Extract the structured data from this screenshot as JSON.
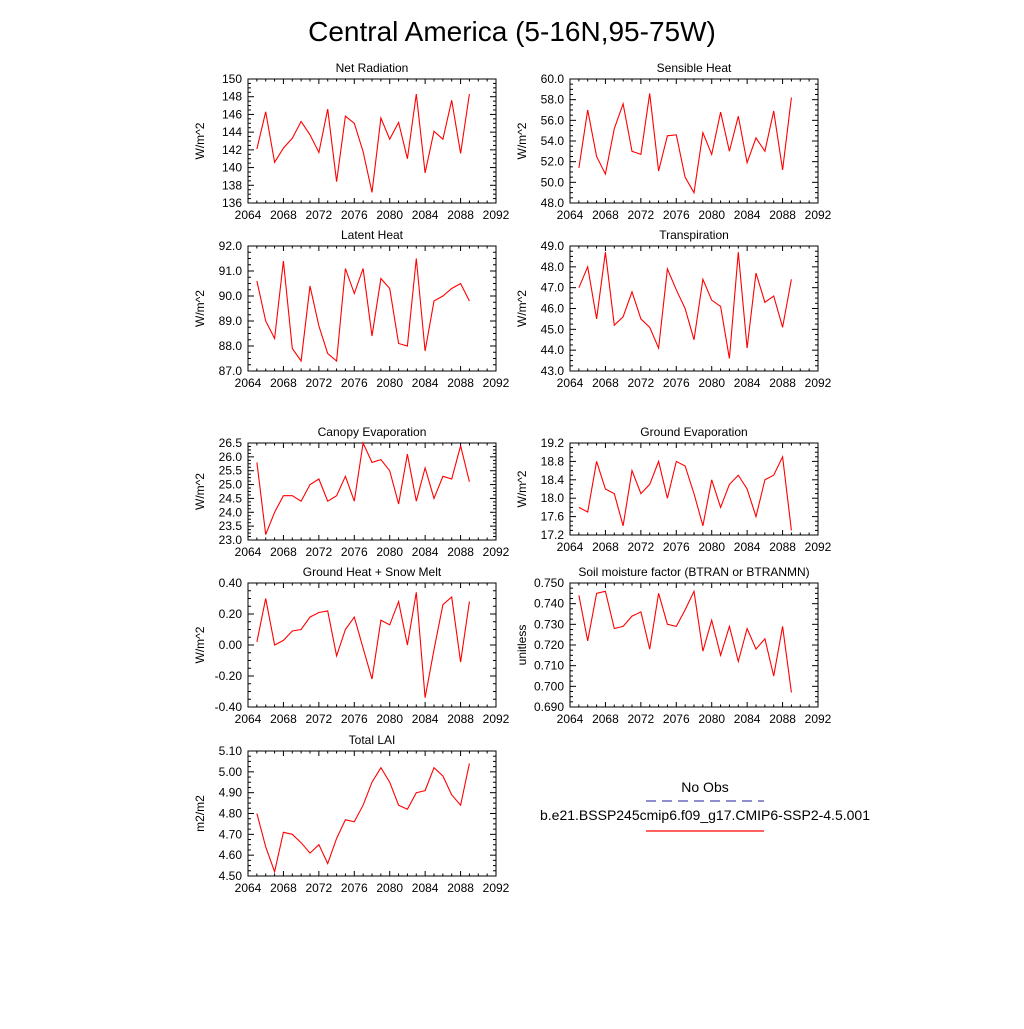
{
  "page": {
    "title": "Central America (5-16N,95-75W)"
  },
  "colors": {
    "series": "#ff0000",
    "obs": "#4b4bb4",
    "axis": "#000000"
  },
  "legend": {
    "obs_label": "No Obs",
    "model_label": "b.e21.BSSP245cmip6.f09_g17.CMIP6-SSP2-4.5.001"
  },
  "chart_data": [
    {
      "type": "line",
      "title": "Net Radiation",
      "ylabel": "W/m^2",
      "xlim": [
        2064,
        2092
      ],
      "ylim": [
        136,
        150
      ],
      "xticks": [
        2064,
        2068,
        2072,
        2076,
        2080,
        2084,
        2088,
        2092
      ],
      "yticks": [
        "136",
        "138",
        "140",
        "142",
        "144",
        "146",
        "148",
        "150"
      ],
      "series": [
        {
          "x": [
            2065,
            2066,
            2067,
            2068,
            2069,
            2070,
            2071,
            2072,
            2073,
            2074,
            2075,
            2076,
            2077,
            2078,
            2079,
            2080,
            2081,
            2082,
            2083,
            2084,
            2085,
            2086,
            2087,
            2088,
            2089
          ],
          "y": [
            142.1,
            146.3,
            140.6,
            142.2,
            143.3,
            145.2,
            143.7,
            141.7,
            146.6,
            138.4,
            145.8,
            145.0,
            141.8,
            137.2,
            145.6,
            143.2,
            145.1,
            141.0,
            148.3,
            139.4,
            144.1,
            143.2,
            147.6,
            141.6,
            148.3
          ]
        }
      ]
    },
    {
      "type": "line",
      "title": "Sensible Heat",
      "ylabel": "W/m^2",
      "xlim": [
        2064,
        2092
      ],
      "ylim": [
        48,
        60
      ],
      "xticks": [
        2064,
        2068,
        2072,
        2076,
        2080,
        2084,
        2088,
        2092
      ],
      "yticks": [
        "48.0",
        "50.0",
        "52.0",
        "54.0",
        "56.0",
        "58.0",
        "60.0"
      ],
      "series": [
        {
          "x": [
            2065,
            2066,
            2067,
            2068,
            2069,
            2070,
            2071,
            2072,
            2073,
            2074,
            2075,
            2076,
            2077,
            2078,
            2079,
            2080,
            2081,
            2082,
            2083,
            2084,
            2085,
            2086,
            2087,
            2088,
            2089
          ],
          "y": [
            51.4,
            57.0,
            52.5,
            50.8,
            55.2,
            57.6,
            53.0,
            52.7,
            58.6,
            51.1,
            54.5,
            54.6,
            50.5,
            49.0,
            54.8,
            52.7,
            56.8,
            53.0,
            56.4,
            51.9,
            54.3,
            53.0,
            56.9,
            51.2,
            58.2
          ]
        }
      ]
    },
    {
      "type": "line",
      "title": "Latent Heat",
      "ylabel": "W/m^2",
      "xlim": [
        2064,
        2092
      ],
      "ylim": [
        87,
        92
      ],
      "xticks": [
        2064,
        2068,
        2072,
        2076,
        2080,
        2084,
        2088,
        2092
      ],
      "yticks": [
        "87.0",
        "88.0",
        "89.0",
        "90.0",
        "91.0",
        "92.0"
      ],
      "series": [
        {
          "x": [
            2065,
            2066,
            2067,
            2068,
            2069,
            2070,
            2071,
            2072,
            2073,
            2074,
            2075,
            2076,
            2077,
            2078,
            2079,
            2080,
            2081,
            2082,
            2083,
            2084,
            2085,
            2086,
            2087,
            2088,
            2089
          ],
          "y": [
            90.6,
            89.0,
            88.3,
            91.4,
            87.9,
            87.4,
            90.4,
            88.8,
            87.7,
            87.4,
            91.1,
            90.1,
            91.1,
            88.4,
            90.7,
            90.3,
            88.1,
            88.0,
            91.5,
            87.8,
            89.8,
            90.0,
            90.3,
            90.5,
            89.8
          ]
        }
      ]
    },
    {
      "type": "line",
      "title": "Transpiration",
      "ylabel": "W/m^2",
      "xlim": [
        2064,
        2092
      ],
      "ylim": [
        43,
        49
      ],
      "xticks": [
        2064,
        2068,
        2072,
        2076,
        2080,
        2084,
        2088,
        2092
      ],
      "yticks": [
        "43.0",
        "44.0",
        "45.0",
        "46.0",
        "47.0",
        "48.0",
        "49.0"
      ],
      "series": [
        {
          "x": [
            2065,
            2066,
            2067,
            2068,
            2069,
            2070,
            2071,
            2072,
            2073,
            2074,
            2075,
            2076,
            2077,
            2078,
            2079,
            2080,
            2081,
            2082,
            2083,
            2084,
            2085,
            2086,
            2087,
            2088,
            2089
          ],
          "y": [
            47.0,
            48.0,
            45.5,
            48.7,
            45.2,
            45.6,
            46.8,
            45.5,
            45.1,
            44.1,
            47.9,
            46.9,
            46.0,
            44.5,
            47.4,
            46.4,
            46.1,
            43.6,
            48.7,
            44.1,
            47.7,
            46.3,
            46.6,
            45.1,
            47.4
          ]
        }
      ]
    },
    {
      "type": "line",
      "title": "Canopy Evaporation",
      "ylabel": "W/m^2",
      "xlim": [
        2064,
        2092
      ],
      "ylim": [
        23,
        26.5
      ],
      "xticks": [
        2064,
        2068,
        2072,
        2076,
        2080,
        2084,
        2088,
        2092
      ],
      "yticks": [
        "23.0",
        "23.5",
        "24.0",
        "24.5",
        "25.0",
        "25.5",
        "26.0",
        "26.5"
      ],
      "series": [
        {
          "x": [
            2065,
            2066,
            2067,
            2068,
            2069,
            2070,
            2071,
            2072,
            2073,
            2074,
            2075,
            2076,
            2077,
            2078,
            2079,
            2080,
            2081,
            2082,
            2083,
            2084,
            2085,
            2086,
            2087,
            2088,
            2089
          ],
          "y": [
            25.8,
            23.2,
            24.0,
            24.6,
            24.6,
            24.4,
            25.0,
            25.2,
            24.4,
            24.6,
            25.3,
            24.4,
            26.5,
            25.8,
            25.9,
            25.5,
            24.3,
            26.1,
            24.4,
            25.6,
            24.5,
            25.3,
            25.2,
            26.4,
            25.1
          ]
        }
      ]
    },
    {
      "type": "line",
      "title": "Ground Evaporation",
      "ylabel": "W/m^2",
      "xlim": [
        2064,
        2092
      ],
      "ylim": [
        17.2,
        19.2
      ],
      "xticks": [
        2064,
        2068,
        2072,
        2076,
        2080,
        2084,
        2088,
        2092
      ],
      "yticks": [
        "17.2",
        "17.6",
        "18.0",
        "18.4",
        "18.8",
        "19.2"
      ],
      "series": [
        {
          "x": [
            2065,
            2066,
            2067,
            2068,
            2069,
            2070,
            2071,
            2072,
            2073,
            2074,
            2075,
            2076,
            2077,
            2078,
            2079,
            2080,
            2081,
            2082,
            2083,
            2084,
            2085,
            2086,
            2087,
            2088,
            2089
          ],
          "y": [
            17.8,
            17.7,
            18.8,
            18.2,
            18.1,
            17.4,
            18.6,
            18.1,
            18.3,
            18.8,
            18.0,
            18.8,
            18.7,
            18.1,
            17.4,
            18.4,
            17.8,
            18.3,
            18.5,
            18.2,
            17.6,
            18.4,
            18.5,
            18.9,
            17.3
          ]
        }
      ]
    },
    {
      "type": "line",
      "title": "Ground Heat + Snow Melt",
      "ylabel": "W/m^2",
      "xlim": [
        2064,
        2092
      ],
      "ylim": [
        -0.4,
        0.4
      ],
      "xticks": [
        2064,
        2068,
        2072,
        2076,
        2080,
        2084,
        2088,
        2092
      ],
      "yticks": [
        "-0.40",
        "-0.20",
        "0.00",
        "0.20",
        "0.40"
      ],
      "series": [
        {
          "x": [
            2065,
            2066,
            2067,
            2068,
            2069,
            2070,
            2071,
            2072,
            2073,
            2074,
            2075,
            2076,
            2077,
            2078,
            2079,
            2080,
            2081,
            2082,
            2083,
            2084,
            2085,
            2086,
            2087,
            2088,
            2089
          ],
          "y": [
            0.02,
            0.3,
            0.0,
            0.03,
            0.09,
            0.1,
            0.18,
            0.21,
            0.22,
            -0.07,
            0.1,
            0.18,
            -0.02,
            -0.22,
            0.16,
            0.13,
            0.28,
            0.0,
            0.34,
            -0.34,
            -0.03,
            0.26,
            0.31,
            -0.11,
            0.28
          ]
        }
      ]
    },
    {
      "type": "line",
      "title": "Soil moisture factor (BTRAN or BTRANMN)",
      "ylabel": "unitless",
      "xlim": [
        2064,
        2092
      ],
      "ylim": [
        0.69,
        0.75
      ],
      "xticks": [
        2064,
        2068,
        2072,
        2076,
        2080,
        2084,
        2088,
        2092
      ],
      "yticks": [
        "0.690",
        "0.700",
        "0.710",
        "0.720",
        "0.730",
        "0.740",
        "0.750"
      ],
      "series": [
        {
          "x": [
            2065,
            2066,
            2067,
            2068,
            2069,
            2070,
            2071,
            2072,
            2073,
            2074,
            2075,
            2076,
            2077,
            2078,
            2079,
            2080,
            2081,
            2082,
            2083,
            2084,
            2085,
            2086,
            2087,
            2088,
            2089
          ],
          "y": [
            0.744,
            0.722,
            0.745,
            0.746,
            0.728,
            0.729,
            0.734,
            0.736,
            0.718,
            0.745,
            0.73,
            0.729,
            0.737,
            0.746,
            0.717,
            0.732,
            0.715,
            0.729,
            0.712,
            0.728,
            0.718,
            0.723,
            0.705,
            0.729,
            0.697
          ]
        }
      ]
    },
    {
      "type": "line",
      "title": "Total LAI",
      "ylabel": "m2/m2",
      "xlim": [
        2064,
        2092
      ],
      "ylim": [
        4.5,
        5.1
      ],
      "xticks": [
        2064,
        2068,
        2072,
        2076,
        2080,
        2084,
        2088,
        2092
      ],
      "yticks": [
        "4.50",
        "4.60",
        "4.70",
        "4.80",
        "4.90",
        "5.00",
        "5.10"
      ],
      "series": [
        {
          "x": [
            2065,
            2066,
            2067,
            2068,
            2069,
            2070,
            2071,
            2072,
            2073,
            2074,
            2075,
            2076,
            2077,
            2078,
            2079,
            2080,
            2081,
            2082,
            2083,
            2084,
            2085,
            2086,
            2087,
            2088,
            2089
          ],
          "y": [
            4.8,
            4.64,
            4.52,
            4.71,
            4.7,
            4.66,
            4.61,
            4.65,
            4.56,
            4.68,
            4.77,
            4.76,
            4.84,
            4.95,
            5.02,
            4.95,
            4.84,
            4.82,
            4.9,
            4.91,
            5.02,
            4.98,
            4.89,
            4.84,
            5.04
          ]
        }
      ]
    }
  ]
}
